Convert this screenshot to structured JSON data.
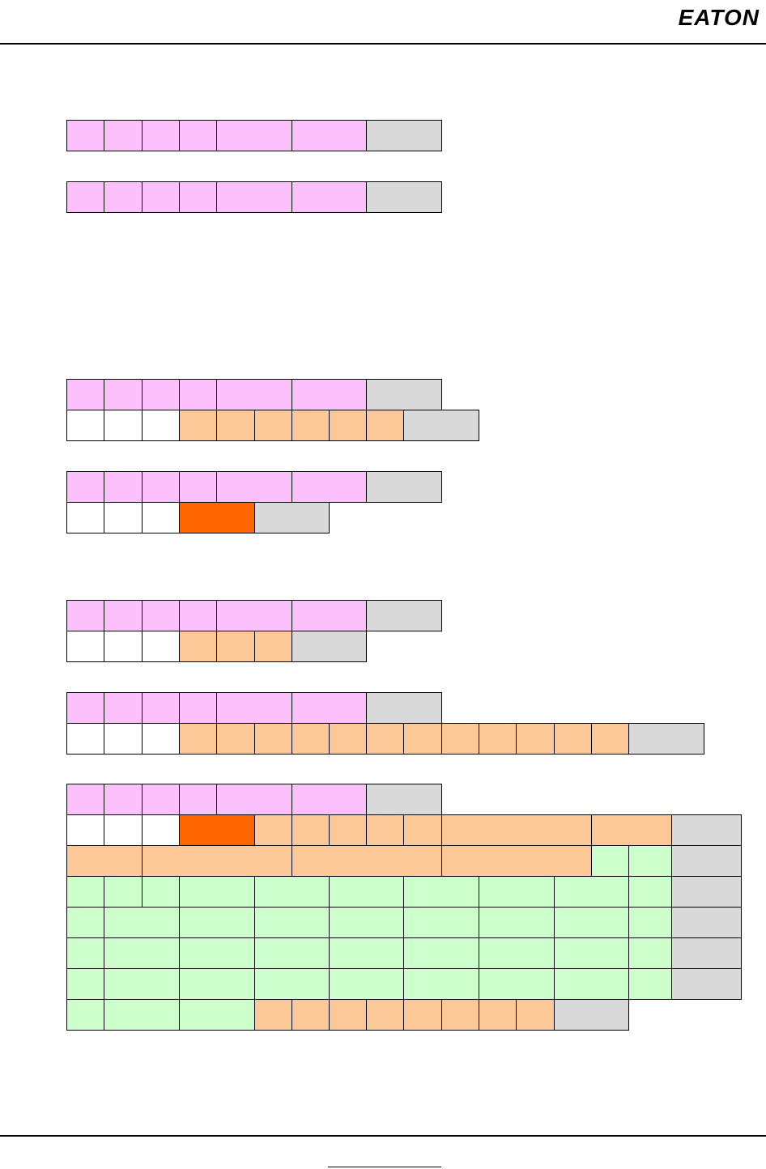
{
  "header": {
    "logo": "EATON"
  }
}
